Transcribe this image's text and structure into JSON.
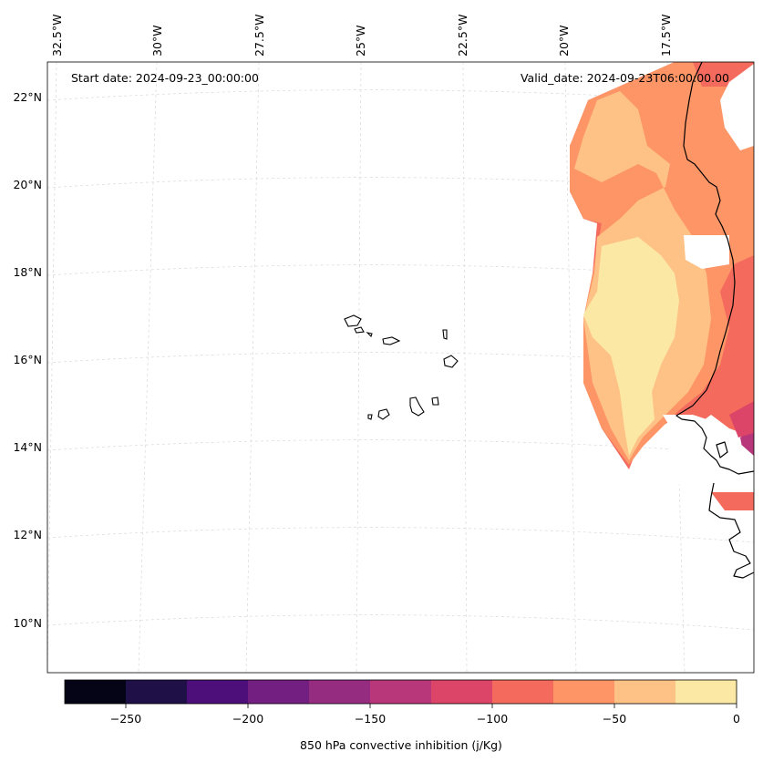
{
  "header": {
    "start_date": "Start date: 2024-09-23_00:00:00",
    "valid_date": "Valid_date: 2024-09-23T06:00:00.00"
  },
  "map": {
    "longitude_labels": [
      "32.5°W",
      "30°W",
      "27.5°W",
      "25°W",
      "22.5°W",
      "20°W",
      "17.5°W"
    ],
    "latitude_labels": [
      "22°N",
      "20°N",
      "18°N",
      "16°N",
      "14°N",
      "12°N",
      "10°N"
    ],
    "field": "850 hPa convective inhibition",
    "gridlines": true
  },
  "colorbar": {
    "label": "850 hPa convective inhibition (j/Kg)",
    "tick_labels": [
      "−250",
      "−200",
      "−150",
      "−100",
      "−50",
      "0"
    ],
    "colors": [
      "#050416",
      "#1f1147",
      "#4d0f7a",
      "#731f81",
      "#952c80",
      "#b8367a",
      "#dc4568",
      "#f46b5d",
      "#fd9567",
      "#fec287",
      "#fce8a5"
    ]
  }
}
